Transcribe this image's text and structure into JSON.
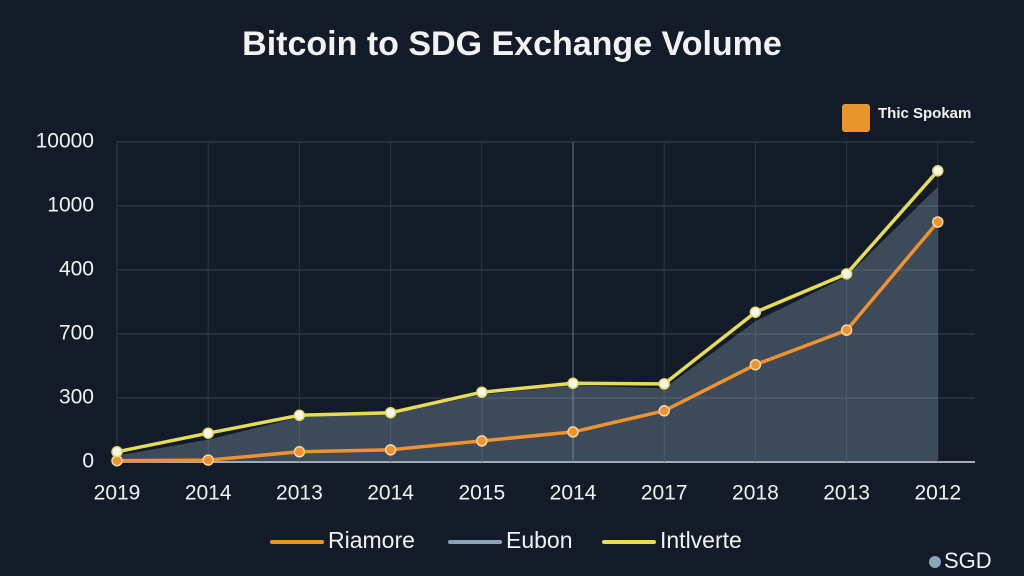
{
  "chart_data": {
    "type": "line",
    "title": "Bitcoin to SDG Exchange Volume",
    "brand": "Thic Spokam",
    "currency": "SGD",
    "categories": [
      "2019",
      "2014",
      "2013",
      "2014",
      "2015",
      "2014",
      "2017",
      "2018",
      "2013",
      "2012"
    ],
    "ylim": [
      0,
      5
    ],
    "yticks": [
      {
        "value": 0,
        "label": "0"
      },
      {
        "value": 1,
        "label": "300"
      },
      {
        "value": 2,
        "label": "700"
      },
      {
        "value": 3,
        "label": "400"
      },
      {
        "value": 4,
        "label": "1000"
      },
      {
        "value": 5,
        "label": "10000"
      }
    ],
    "grid": true,
    "legend": "bottom",
    "series": [
      {
        "name": "Riamore",
        "color": "#f0922e",
        "values": [
          0.02,
          0.03,
          0.16,
          0.19,
          0.33,
          0.47,
          0.8,
          1.52,
          2.06,
          3.75
        ]
      },
      {
        "name": "Eubon",
        "color": "#8aa4b8",
        "type": "area",
        "values": [
          0.1,
          0.35,
          0.7,
          0.75,
          1.05,
          1.2,
          1.15,
          2.2,
          2.9,
          4.3
        ]
      },
      {
        "name": "Intlverte",
        "color": "#e6dc5a",
        "values": [
          0.16,
          0.45,
          0.73,
          0.77,
          1.09,
          1.23,
          1.22,
          2.34,
          2.94,
          4.55
        ]
      }
    ]
  }
}
